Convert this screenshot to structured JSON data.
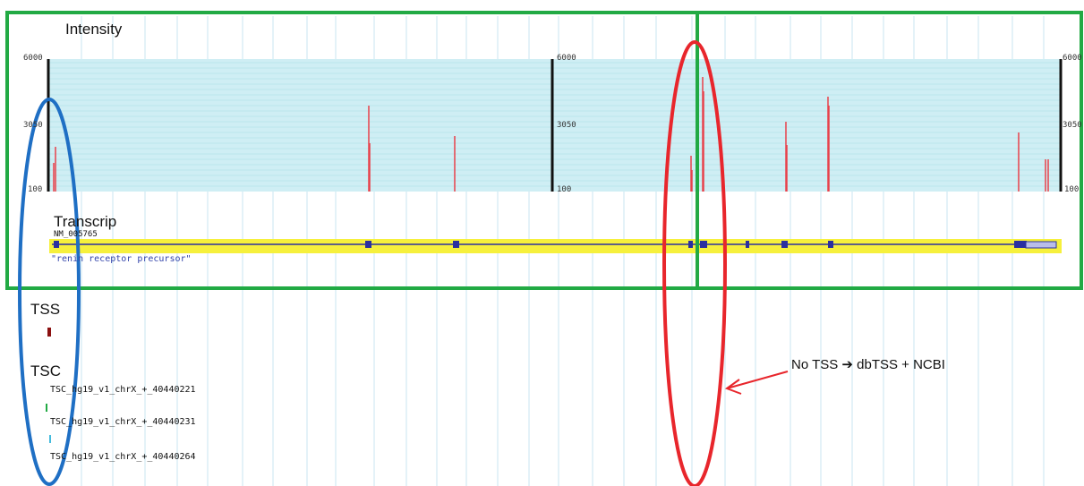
{
  "labels": {
    "intensity": "Intensity",
    "transcript": "Transcrip",
    "tss": "TSS",
    "tsc": "TSC"
  },
  "axis_ticks": {
    "max": "6000",
    "mid": "3050",
    "min": "100"
  },
  "transcript": {
    "id": "NM_005765",
    "name": "\"renin receptor precursor\""
  },
  "tsc_items": [
    "TSC_hg19_v1_chrX_+_40440221",
    "TSC_hg19_v1_chrX_+_40440231",
    "TSC_hg19_v1_chrX_+_40440264"
  ],
  "annotation": {
    "text": "No TSS ➔ dbTSS + NCBI"
  },
  "colors": {
    "track_bg": "#cfeef4",
    "signal": "#e8404a",
    "transcript_bg": "#f6f03c",
    "exon": "#2a2fa0",
    "green_box": "#22aa44",
    "blue_ellipse": "#1f6fc4",
    "red_ellipse": "#e8262c"
  }
}
